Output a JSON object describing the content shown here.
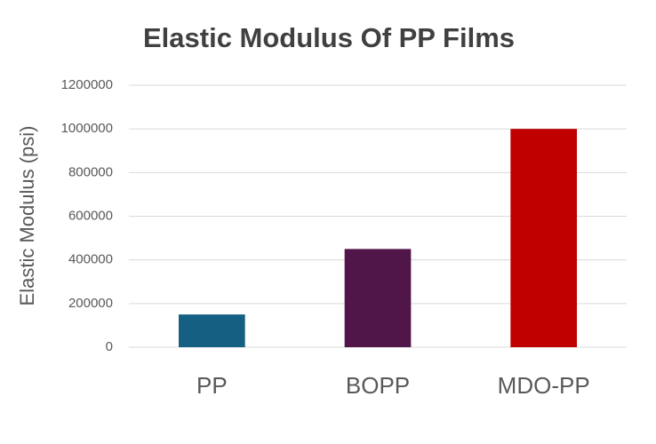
{
  "chart_data": {
    "type": "bar",
    "title": "Elastic Modulus Of PP Films",
    "y_label": "Elastic Modulus (psi)",
    "categories": [
      "PP",
      "BOPP",
      "MDO-PP"
    ],
    "values": [
      150000,
      450000,
      1000000
    ],
    "colors": [
      "#156082",
      "#501549",
      "#c00000"
    ],
    "ylim": [
      0,
      1200000
    ],
    "yticks": [
      0,
      200000,
      400000,
      600000,
      800000,
      1000000,
      1200000
    ],
    "grid": true
  }
}
